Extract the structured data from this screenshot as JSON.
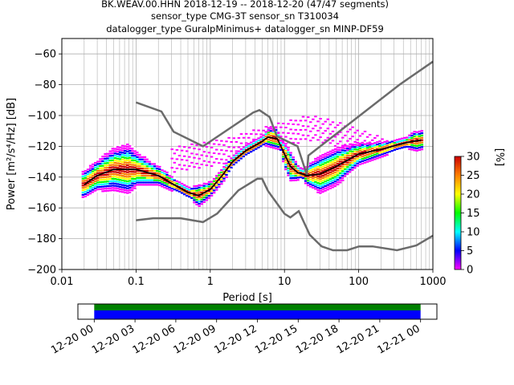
{
  "title": {
    "line1": "BK.WEAV.00.HHN   2018-12-19 -- 2018-12-20  (47/47 segments)",
    "line2": "sensor_type CMG-3T sensor_sn T310034",
    "line3": "datalogger_type GuralpMinimus+ datalogger_sn MINP-DF59"
  },
  "chart_data": [
    {
      "type": "heatmap",
      "xlabel": "Period [s]",
      "ylabel": "Power [m²/s⁴/Hz] [dB]",
      "xscale": "log",
      "xlim": [
        0.01,
        1000
      ],
      "ylim": [
        -200,
        -50
      ],
      "xticks": [
        0.01,
        0.1,
        1,
        10,
        100,
        1000
      ],
      "xtick_labels": [
        "0.01",
        "0.1",
        "1",
        "10",
        "100",
        "1000"
      ],
      "yticks": [
        -200,
        -180,
        -160,
        -140,
        -120,
        -100,
        -80,
        -60
      ],
      "ytick_labels": [
        "−200",
        "−180",
        "−160",
        "−140",
        "−120",
        "−100",
        "−80",
        "−60"
      ],
      "grid": true,
      "colorbar": {
        "label": "[%]",
        "ticks": [
          0,
          5,
          10,
          15,
          20,
          25,
          30
        ],
        "colors": [
          "#ffffff",
          "#ff00ff",
          "#0000ff",
          "#00ffff",
          "#00ff00",
          "#ffff00",
          "#ff8000",
          "#cc0000"
        ]
      },
      "mean_curve": {
        "color": "#000000",
        "x": [
          0.02,
          0.03,
          0.05,
          0.1,
          0.2,
          0.3,
          0.5,
          0.7,
          1,
          1.5,
          2,
          3,
          5,
          6,
          8,
          10,
          12,
          15,
          20,
          30,
          50,
          100,
          200,
          500,
          700
        ],
        "y": [
          -145,
          -139,
          -135,
          -135,
          -139,
          -144,
          -150,
          -152,
          -148,
          -138,
          -130,
          -123,
          -117,
          -114,
          -115,
          -125,
          -133,
          -137,
          -139,
          -138,
          -133,
          -125,
          -122,
          -117,
          -116
        ]
      },
      "noise_models": {
        "color": "#6b6b6b",
        "high": {
          "x": [
            0.1,
            0.22,
            0.32,
            0.8,
            3.8,
            4.6,
            6.3,
            7.9,
            15,
            20,
            21,
            354.8,
            1000
          ],
          "y": [
            -91.5,
            -97.4,
            -110.5,
            -120,
            -98,
            -96.5,
            -101,
            -113.5,
            -120,
            -138.5,
            -126,
            -80,
            -65
          ]
        },
        "low": {
          "x": [
            0.1,
            0.17,
            0.4,
            0.8,
            1.24,
            2.4,
            4.3,
            5,
            6,
            10,
            12,
            15.6,
            21.9,
            31.6,
            45,
            70,
            101,
            154,
            328,
            600,
            1000
          ],
          "y": [
            -168,
            -166.7,
            -166.7,
            -169.2,
            -163.7,
            -148.6,
            -141.1,
            -141.1,
            -149,
            -163.8,
            -166.2,
            -162.1,
            -177.5,
            -185,
            -187.5,
            -187.5,
            -185,
            -185,
            -187.5,
            -184.4,
            -178
          ]
        }
      },
      "spread": [
        {
          "percent": 30,
          "x": [
            0.02,
            0.03,
            0.05,
            0.1,
            0.2,
            0.5,
            0.7,
            1,
            2,
            5,
            7,
            10,
            15,
            20,
            30,
            50,
            100,
            300,
            600
          ],
          "y": [
            -145,
            -139,
            -135,
            -135,
            -139,
            -150,
            -152,
            -148,
            -130,
            -117,
            -114,
            -125,
            -137,
            -139,
            -138,
            -133,
            -125,
            -120,
            -116
          ]
        },
        {
          "percent": 10,
          "x": [
            0.02,
            0.03,
            0.05,
            0.08,
            0.1,
            0.2,
            0.5,
            1,
            2,
            5,
            10,
            15,
            20,
            30,
            50,
            100,
            300,
            600
          ],
          "y": [
            -140,
            -133,
            -126,
            -124,
            -128,
            -136,
            -150,
            -146,
            -129,
            -116,
            -120,
            -135,
            -142,
            -146,
            -141,
            -129,
            -121,
            -113
          ]
        },
        {
          "percent": 2,
          "x": [
            0.3,
            0.5,
            1,
            2,
            3,
            5,
            7,
            10,
            15,
            20,
            30,
            50,
            100,
            200,
            300
          ],
          "y": [
            -125,
            -123,
            -121,
            -118,
            -115,
            -112,
            -110,
            -108,
            -106,
            -104,
            -105,
            -108,
            -113,
            -118,
            -122
          ]
        }
      ]
    },
    {
      "type": "bar",
      "title": "",
      "x_tick_labels": [
        "12-20 00",
        "12-20 03",
        "12-20 06",
        "12-20 09",
        "12-20 12",
        "12-20 15",
        "12-20 18",
        "12-20 21",
        "12-21 00"
      ],
      "xlim": [
        "12-19 22:48",
        "12-21 01:12"
      ],
      "coverage": [
        {
          "color": "#008000",
          "start": "12-20 00:00",
          "end": "12-21 00:00"
        },
        {
          "color": "#0000ff",
          "start": "12-20 00:00",
          "end": "12-21 00:00"
        }
      ]
    }
  ]
}
